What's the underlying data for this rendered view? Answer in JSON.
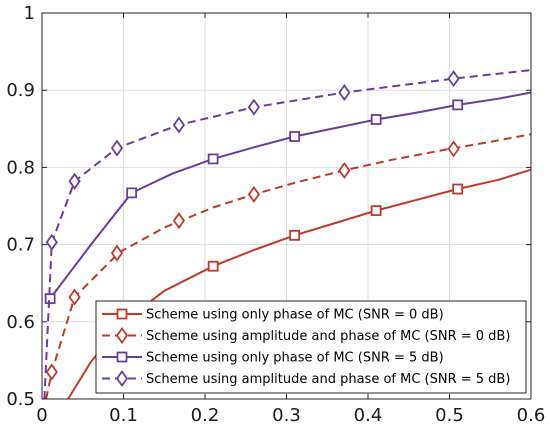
{
  "chart_data": {
    "type": "line",
    "title": "",
    "xlabel": "",
    "ylabel": "",
    "xlim": [
      0,
      0.6
    ],
    "ylim": [
      0.5,
      1
    ],
    "xticks": [
      0,
      0.1,
      0.2,
      0.3,
      0.4,
      0.5,
      0.6
    ],
    "xtick_labels": [
      "0",
      "0.1",
      "0.2",
      "0.3",
      "0.4",
      "0.5",
      "0.6"
    ],
    "yticks": [
      0.5,
      0.6,
      0.7,
      0.8,
      0.9,
      1.0
    ],
    "ytick_labels": [
      "0.5",
      "0.6",
      "0.7",
      "0.8",
      "0.9",
      "1"
    ],
    "grid": true,
    "legend_position": "bottom-right",
    "series": [
      {
        "name": "Scheme using only phase of MC (SNR = 0 dB)",
        "color": "#c0392b",
        "line_style": "solid",
        "marker": "square",
        "curve": [
          [
            0.032,
            0.5
          ],
          [
            0.06,
            0.548
          ],
          [
            0.1,
            0.6
          ],
          [
            0.15,
            0.64
          ],
          [
            0.21,
            0.672
          ],
          [
            0.26,
            0.693
          ],
          [
            0.31,
            0.712
          ],
          [
            0.36,
            0.728
          ],
          [
            0.41,
            0.744
          ],
          [
            0.46,
            0.758
          ],
          [
            0.51,
            0.772
          ],
          [
            0.56,
            0.784
          ],
          [
            0.6,
            0.797
          ]
        ],
        "markers": [
          [
            0.11,
            0.611
          ],
          [
            0.21,
            0.672
          ],
          [
            0.31,
            0.712
          ],
          [
            0.41,
            0.744
          ],
          [
            0.51,
            0.772
          ]
        ]
      },
      {
        "name": "Scheme using amplitude and phase of MC (SNR = 0 dB)",
        "color": "#c0392b",
        "line_style": "dashed",
        "marker": "diamond",
        "curve": [
          [
            0.005,
            0.5
          ],
          [
            0.012,
            0.535
          ],
          [
            0.04,
            0.632
          ],
          [
            0.095,
            0.69
          ],
          [
            0.15,
            0.722
          ],
          [
            0.21,
            0.748
          ],
          [
            0.26,
            0.765
          ],
          [
            0.31,
            0.78
          ],
          [
            0.37,
            0.796
          ],
          [
            0.43,
            0.81
          ],
          [
            0.5,
            0.824
          ],
          [
            0.55,
            0.833
          ],
          [
            0.6,
            0.843
          ]
        ],
        "markers": [
          [
            0.012,
            0.535
          ],
          [
            0.04,
            0.632
          ],
          [
            0.092,
            0.689
          ],
          [
            0.168,
            0.731
          ],
          [
            0.26,
            0.765
          ],
          [
            0.371,
            0.796
          ],
          [
            0.505,
            0.824
          ]
        ]
      },
      {
        "name": "Scheme using only phase of MC (SNR = 5 dB)",
        "color": "#6a3d9a",
        "line_style": "solid",
        "marker": "square",
        "curve": [
          [
            0.01,
            0.63
          ],
          [
            0.06,
            0.7
          ],
          [
            0.11,
            0.767
          ],
          [
            0.16,
            0.792
          ],
          [
            0.21,
            0.811
          ],
          [
            0.26,
            0.826
          ],
          [
            0.31,
            0.84
          ],
          [
            0.36,
            0.851
          ],
          [
            0.41,
            0.862
          ],
          [
            0.46,
            0.871
          ],
          [
            0.51,
            0.881
          ],
          [
            0.56,
            0.889
          ],
          [
            0.6,
            0.897
          ]
        ],
        "markers": [
          [
            0.01,
            0.63
          ],
          [
            0.11,
            0.767
          ],
          [
            0.21,
            0.811
          ],
          [
            0.31,
            0.84
          ],
          [
            0.41,
            0.862
          ],
          [
            0.51,
            0.881
          ]
        ]
      },
      {
        "name": "Scheme using amplitude and phase of MC (SNR = 5 dB)",
        "color": "#6a3d9a",
        "line_style": "dashed",
        "marker": "diamond",
        "curve": [
          [
            0.003,
            0.5
          ],
          [
            0.012,
            0.703
          ],
          [
            0.04,
            0.782
          ],
          [
            0.092,
            0.825
          ],
          [
            0.168,
            0.855
          ],
          [
            0.26,
            0.878
          ],
          [
            0.371,
            0.897
          ],
          [
            0.505,
            0.915
          ],
          [
            0.6,
            0.926
          ]
        ],
        "markers": [
          [
            0.012,
            0.703
          ],
          [
            0.04,
            0.782
          ],
          [
            0.092,
            0.825
          ],
          [
            0.168,
            0.855
          ],
          [
            0.26,
            0.878
          ],
          [
            0.371,
            0.897
          ],
          [
            0.505,
            0.915
          ]
        ]
      }
    ]
  }
}
